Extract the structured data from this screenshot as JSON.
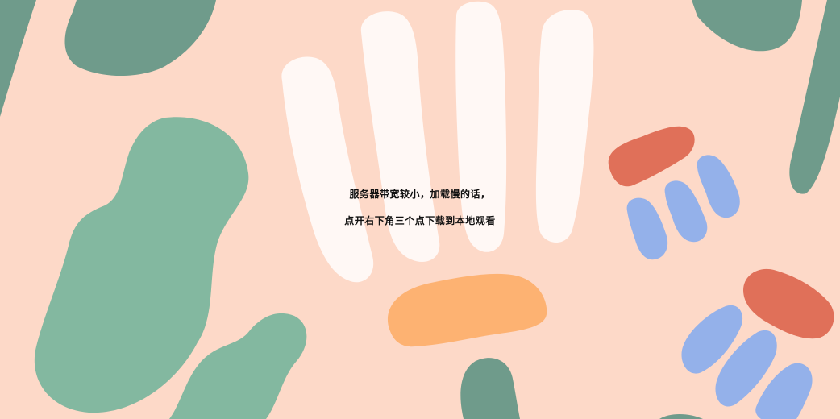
{
  "palette": {
    "background": "#fdd9c8",
    "dark_green": "#6f9b8b",
    "light_green": "#83b8a0",
    "white_strokes": "#fff8f5",
    "orange": "#fdb272",
    "red": "#e07059",
    "blue": "#94b1ea"
  },
  "notice": {
    "line1": "服务器带宽较小，加载慢的话，",
    "line2": "点开右下角三个点下载到本地观看"
  }
}
